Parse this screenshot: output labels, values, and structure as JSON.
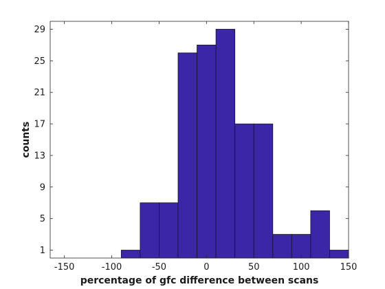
{
  "chart_data": {
    "type": "bar",
    "title": "",
    "xlabel": "percentage of gfc difference between scans",
    "ylabel": "counts",
    "xlim": [
      -165,
      150
    ],
    "ylim": [
      0,
      30
    ],
    "x_ticks": [
      -150,
      -100,
      -50,
      0,
      50,
      100,
      150
    ],
    "x_tick_labels": [
      "-150",
      "-100",
      "-50",
      "0",
      "50",
      "100",
      "150"
    ],
    "y_ticks": [
      1,
      5,
      9,
      13,
      17,
      21,
      25,
      29
    ],
    "y_tick_labels": [
      "1",
      "5",
      "9",
      "13",
      "17",
      "21",
      "25",
      "29"
    ],
    "grid": false,
    "legend": "none",
    "bar_color": "#3a26a6",
    "bins": [
      {
        "x0": -90,
        "x1": -70,
        "count": 1
      },
      {
        "x0": -70,
        "x1": -50,
        "count": 7
      },
      {
        "x0": -50,
        "x1": -30,
        "count": 7
      },
      {
        "x0": -30,
        "x1": -10,
        "count": 26
      },
      {
        "x0": -10,
        "x1": 10,
        "count": 27
      },
      {
        "x0": 10,
        "x1": 30,
        "count": 29
      },
      {
        "x0": 30,
        "x1": 50,
        "count": 17
      },
      {
        "x0": 50,
        "x1": 70,
        "count": 17
      },
      {
        "x0": 70,
        "x1": 90,
        "count": 3
      },
      {
        "x0": 90,
        "x1": 110,
        "count": 3
      },
      {
        "x0": 110,
        "x1": 130,
        "count": 6
      },
      {
        "x0": 130,
        "x1": 150,
        "count": 1
      }
    ]
  }
}
